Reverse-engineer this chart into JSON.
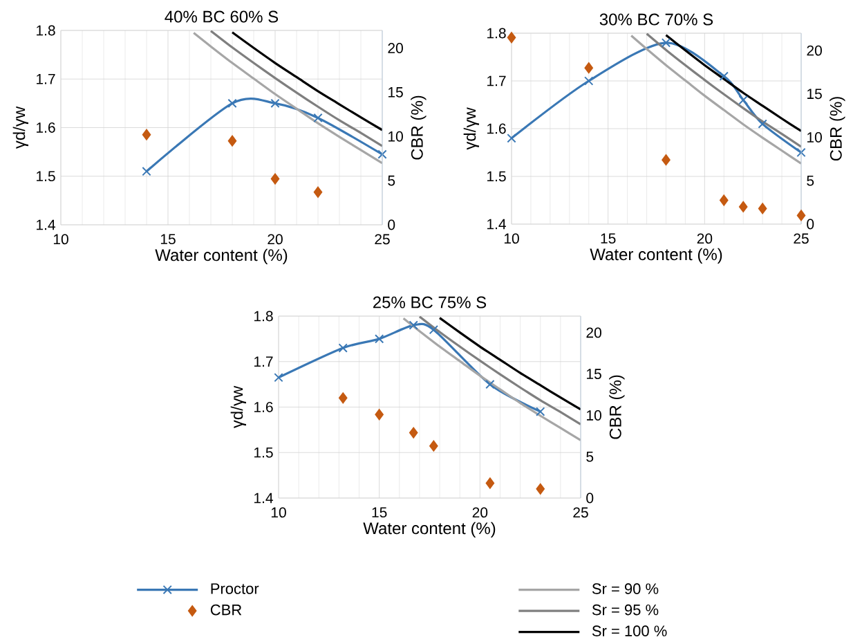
{
  "chart_data": [
    {
      "type": "line",
      "title": "40% BC 60% S",
      "xlabel": "Water content (%)",
      "ylabel": "γd/γw",
      "y2label": "CBR (%)",
      "xlim": [
        10,
        25
      ],
      "xticks": [
        10,
        15,
        20,
        25
      ],
      "ylim": [
        1.4,
        1.8
      ],
      "yticks": [
        1.4,
        1.5,
        1.6,
        1.7,
        1.8
      ],
      "y2lim": [
        0,
        22
      ],
      "y2ticks": [
        0,
        5,
        10,
        15,
        20
      ],
      "grid": true,
      "series": [
        {
          "type": "line",
          "color": "#3a78b5",
          "marker": "cross",
          "x": [
            14,
            18,
            20,
            22,
            25
          ],
          "values": [
            1.51,
            1.65,
            1.65,
            1.62,
            1.545
          ]
        },
        {
          "type": "scatter",
          "axis": "y2",
          "color": "#c55a11",
          "marker": "diamond",
          "x": [
            14,
            18,
            20,
            22
          ],
          "values": [
            10.2,
            9.5,
            5.2,
            3.7
          ]
        },
        {
          "type": "line",
          "color": "#a6a6a6",
          "x": [
            16.2,
            17,
            18,
            19,
            20,
            21,
            22,
            23,
            24,
            25
          ],
          "values": [
            1.795,
            1.767,
            1.733,
            1.701,
            1.669,
            1.639,
            1.609,
            1.581,
            1.554,
            1.527
          ]
        },
        {
          "type": "line",
          "color": "#7f7f7f",
          "x": [
            17,
            18,
            19,
            20,
            21,
            22,
            23,
            24,
            25
          ],
          "values": [
            1.799,
            1.765,
            1.733,
            1.702,
            1.672,
            1.643,
            1.615,
            1.589,
            1.562
          ]
        },
        {
          "type": "line",
          "color": "#000000",
          "x": [
            18,
            19,
            20,
            21,
            22,
            23,
            24,
            25
          ],
          "values": [
            1.796,
            1.764,
            1.733,
            1.704,
            1.675,
            1.648,
            1.621,
            1.595
          ]
        }
      ]
    },
    {
      "type": "line",
      "title": "30% BC 70% S",
      "xlabel": "Water content (%)",
      "ylabel": "γd/γw",
      "y2label": "CBR (%)",
      "xlim": [
        10,
        25
      ],
      "xticks": [
        10,
        15,
        20,
        25
      ],
      "ylim": [
        1.4,
        1.8
      ],
      "yticks": [
        1.4,
        1.5,
        1.6,
        1.7,
        1.8
      ],
      "y2lim": [
        0,
        22
      ],
      "y2ticks": [
        0,
        5,
        10,
        15,
        20
      ],
      "grid": true,
      "series": [
        {
          "type": "line",
          "color": "#3a78b5",
          "marker": "cross",
          "x": [
            10,
            14,
            18,
            21,
            22,
            23,
            25
          ],
          "values": [
            1.58,
            1.7,
            1.78,
            1.71,
            1.66,
            1.61,
            1.55
          ]
        },
        {
          "type": "scatter",
          "axis": "y2",
          "color": "#c55a11",
          "marker": "diamond",
          "x": [
            10,
            14,
            18,
            21,
            22,
            23,
            25
          ],
          "values": [
            21.5,
            18,
            7.4,
            2.75,
            2,
            1.8,
            1
          ]
        },
        {
          "type": "line",
          "color": "#a6a6a6",
          "x": [
            16.2,
            17,
            18,
            19,
            20,
            21,
            22,
            23,
            24,
            25
          ],
          "values": [
            1.795,
            1.767,
            1.733,
            1.701,
            1.669,
            1.639,
            1.609,
            1.581,
            1.554,
            1.527
          ]
        },
        {
          "type": "line",
          "color": "#7f7f7f",
          "x": [
            17,
            18,
            19,
            20,
            21,
            22,
            23,
            24,
            25
          ],
          "values": [
            1.799,
            1.765,
            1.733,
            1.702,
            1.672,
            1.643,
            1.615,
            1.589,
            1.562
          ]
        },
        {
          "type": "line",
          "color": "#000000",
          "x": [
            18,
            19,
            20,
            21,
            22,
            23,
            24,
            25
          ],
          "values": [
            1.796,
            1.764,
            1.733,
            1.704,
            1.675,
            1.648,
            1.621,
            1.595
          ]
        }
      ]
    },
    {
      "type": "line",
      "title": "25% BC 75% S",
      "xlabel": "Water content (%)",
      "ylabel": "γd/γw",
      "y2label": "CBR (%)",
      "xlim": [
        10,
        25
      ],
      "xticks": [
        10,
        15,
        20,
        25
      ],
      "ylim": [
        1.4,
        1.8
      ],
      "yticks": [
        1.4,
        1.5,
        1.6,
        1.7,
        1.8
      ],
      "y2lim": [
        0,
        22
      ],
      "y2ticks": [
        0,
        5,
        10,
        15,
        20
      ],
      "grid": true,
      "legend": "bottom",
      "series": [
        {
          "name": "Proctor",
          "type": "line",
          "color": "#3a78b5",
          "marker": "cross",
          "x": [
            10,
            13.2,
            15,
            16.7,
            17.7,
            20.5,
            23
          ],
          "values": [
            1.665,
            1.73,
            1.75,
            1.78,
            1.77,
            1.65,
            1.59
          ]
        },
        {
          "name": "CBR",
          "type": "scatter",
          "axis": "y2",
          "color": "#c55a11",
          "marker": "diamond",
          "x": [
            13.2,
            15,
            16.7,
            17.7,
            20.5,
            23
          ],
          "values": [
            12.1,
            10.1,
            7.9,
            6.3,
            1.8,
            1.1
          ]
        },
        {
          "name": "Sr = 90 %",
          "type": "line",
          "color": "#a6a6a6",
          "x": [
            16.2,
            17,
            18,
            19,
            20,
            21,
            22,
            23,
            24,
            25
          ],
          "values": [
            1.795,
            1.767,
            1.733,
            1.701,
            1.669,
            1.639,
            1.609,
            1.581,
            1.554,
            1.527
          ]
        },
        {
          "name": "Sr = 95 %",
          "type": "line",
          "color": "#7f7f7f",
          "x": [
            17,
            18,
            19,
            20,
            21,
            22,
            23,
            24,
            25
          ],
          "values": [
            1.799,
            1.765,
            1.733,
            1.702,
            1.672,
            1.643,
            1.615,
            1.589,
            1.562
          ]
        },
        {
          "name": "Sr = 100 %",
          "type": "line",
          "color": "#000000",
          "x": [
            18,
            19,
            20,
            21,
            22,
            23,
            24,
            25
          ],
          "values": [
            1.796,
            1.764,
            1.733,
            1.704,
            1.675,
            1.648,
            1.621,
            1.595
          ]
        }
      ]
    }
  ]
}
